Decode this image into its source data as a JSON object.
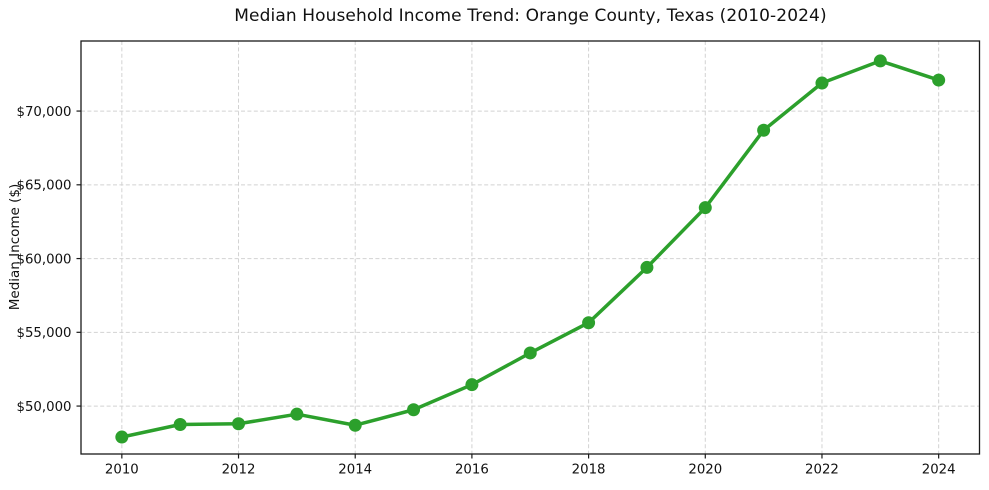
{
  "page": {
    "background_color": "#ffffff"
  },
  "chart_data": {
    "type": "line",
    "title": "Median Household Income Trend: Orange County, Texas (2010-2024)",
    "xlabel": "",
    "ylabel": "Median Income ($)",
    "x": [
      2010,
      2011,
      2012,
      2013,
      2014,
      2015,
      2016,
      2017,
      2018,
      2019,
      2020,
      2021,
      2022,
      2023,
      2024
    ],
    "values": [
      47900,
      48750,
      48800,
      49450,
      48700,
      49750,
      51450,
      53600,
      55650,
      59400,
      63450,
      68700,
      71900,
      73400,
      72100
    ],
    "xticks": {
      "values": [
        2010,
        2012,
        2014,
        2016,
        2018,
        2020,
        2022,
        2024
      ],
      "labels": [
        "2010",
        "2012",
        "2014",
        "2016",
        "2018",
        "2020",
        "2022",
        "2024"
      ]
    },
    "yticks": {
      "values": [
        50000,
        55000,
        60000,
        65000,
        70000
      ],
      "labels": [
        "$50,000",
        "$55,000",
        "$60,000",
        "$65,000",
        "$70,000"
      ]
    },
    "xlim": [
      2009.3,
      2024.7
    ],
    "ylim": [
      46750,
      74750
    ],
    "grid": true,
    "grid_line_style": "dashed",
    "grid_color": "#d2d2d2",
    "line_color": "#2ca02c",
    "marker": "circle",
    "marker_size": 6.5,
    "line_width": 3.5,
    "spine_color": "#1a1a1a",
    "text_color": "#111111",
    "legend": "none"
  }
}
